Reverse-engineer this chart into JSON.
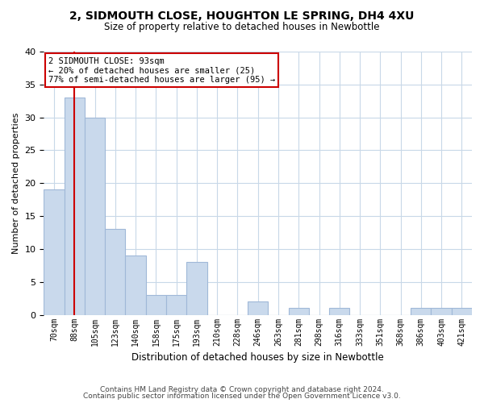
{
  "title": "2, SIDMOUTH CLOSE, HOUGHTON LE SPRING, DH4 4XU",
  "subtitle": "Size of property relative to detached houses in Newbottle",
  "xlabel": "Distribution of detached houses by size in Newbottle",
  "ylabel": "Number of detached properties",
  "categories": [
    "70sqm",
    "88sqm",
    "105sqm",
    "123sqm",
    "140sqm",
    "158sqm",
    "175sqm",
    "193sqm",
    "210sqm",
    "228sqm",
    "246sqm",
    "263sqm",
    "281sqm",
    "298sqm",
    "316sqm",
    "333sqm",
    "351sqm",
    "368sqm",
    "386sqm",
    "403sqm",
    "421sqm"
  ],
  "values": [
    19,
    33,
    30,
    13,
    9,
    3,
    3,
    8,
    0,
    0,
    2,
    0,
    1,
    0,
    1,
    0,
    0,
    0,
    1,
    1,
    1
  ],
  "bar_color": "#c9d9ec",
  "bar_edge_color": "#a0b8d8",
  "red_line_index": 1,
  "annotation_title": "2 SIDMOUTH CLOSE: 93sqm",
  "annotation_line1": "← 20% of detached houses are smaller (25)",
  "annotation_line2": "77% of semi-detached houses are larger (95) →",
  "annotation_box_color": "#ffffff",
  "annotation_box_edge": "#cc0000",
  "red_line_color": "#cc0000",
  "ylim": [
    0,
    40
  ],
  "footnote1": "Contains HM Land Registry data © Crown copyright and database right 2024.",
  "footnote2": "Contains public sector information licensed under the Open Government Licence v3.0.",
  "background_color": "#ffffff",
  "grid_color": "#c8d8e8"
}
